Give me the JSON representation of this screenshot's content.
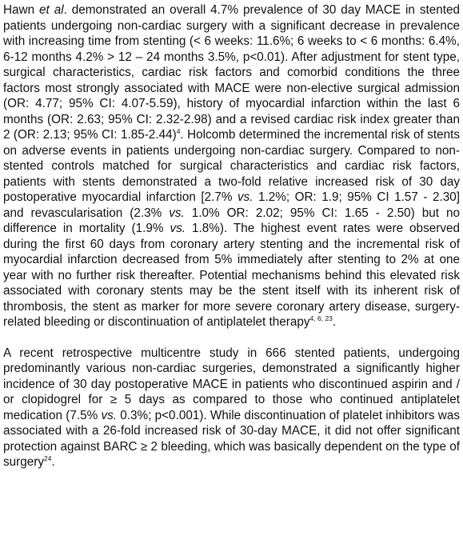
{
  "paragraphs": [
    {
      "segments": [
        {
          "text": "Hawn "
        },
        {
          "text": "et al",
          "style": "em"
        },
        {
          "text": ". demonstrated an overall 4.7% prevalence of 30 day MACE in stented patients undergoing non-cardiac surgery with a significant decrease in prevalence with increasing time from stenting (< 6 weeks: 11.6%; 6 weeks to < 6 months: 6.4%, 6-12 months 4.2% > 12 – 24 months 3.5%, p<0.01). After adjustment for stent type, surgical characteristics, cardiac risk factors and comorbid conditions the three factors most strongly associated with MACE were non-elective surgical admission (OR: 4.77; 95% CI: 4.07-5.59), history of myocardial infarction within the last 6 months (OR: 2.63; 95% CI: 2.32-2.98) and a revised cardiac risk index greater than 2 (OR: 2.13; 95% CI: 1.85-2.44)"
        },
        {
          "text": "4",
          "style": "sup"
        },
        {
          "text": ". Holcomb determined the incremental risk of stents on adverse events in patients undergoing non-cardiac surgery. Compared to non-stented controls matched for surgical characteristics and cardiac risk factors, patients with stents demonstrated a two-fold relative increased risk of 30 day postoperative myocardial infarction [2.7% "
        },
        {
          "text": "vs.",
          "style": "em"
        },
        {
          "text": " 1.2%; OR: 1.9; 95% CI 1.57 - 2.30] and revascularisation (2.3% "
        },
        {
          "text": "vs.",
          "style": "em"
        },
        {
          "text": " 1.0% OR: 2.02; 95% CI: 1.65 - 2.50) but no difference in mortality (1.9% "
        },
        {
          "text": "vs.",
          "style": "em"
        },
        {
          "text": " 1.8%). The highest event rates were observed during the first 60 days from coronary artery stenting and the incremental risk of myocardial infarction decreased from 5% immediately after stenting to 2% at one year with no further risk thereafter. Potential mechanisms behind this elevated risk associated with coronary stents may be the stent itself with its inherent risk of thrombosis, the stent as marker for more severe coronary artery disease, surgery-related bleeding or discontinuation of antiplatelet therapy"
        },
        {
          "text": "4, 6, 23",
          "style": "sup"
        },
        {
          "text": "."
        }
      ]
    },
    {
      "segments": [
        {
          "text": "A recent retrospective multicentre study in 666 stented patients, undergoing predominantly various non-cardiac surgeries, demonstrated a significantly higher incidence of 30 day postoperative MACE in patients who discontinued aspirin and / or clopidogrel for ≥ 5 days as compared to those who continued antiplatelet medication (7.5% "
        },
        {
          "text": "vs.",
          "style": "em"
        },
        {
          "text": " 0.3%; p<0.001). While discontinuation of platelet inhibitors was associated with a 26-fold increased risk of 30-day MACE, it did not offer significant protection against BARC ≥ 2 bleeding, which was basically dependent on the type of surgery"
        },
        {
          "text": "24",
          "style": "sup"
        },
        {
          "text": "."
        }
      ]
    }
  ]
}
